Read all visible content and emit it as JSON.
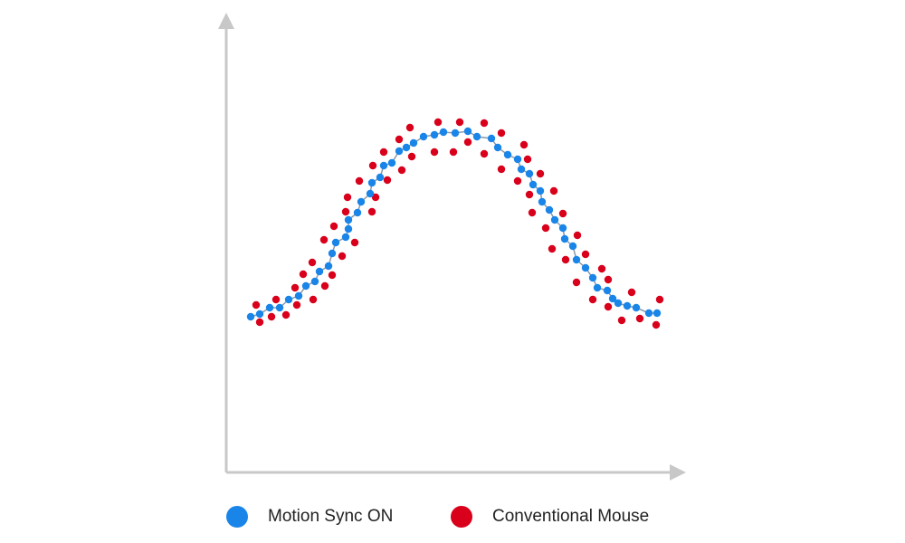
{
  "chart_data": {
    "type": "scatter",
    "title": "",
    "xlabel": "",
    "ylabel": "",
    "xlim": [
      0,
      100
    ],
    "ylim": [
      0,
      100
    ],
    "grid": false,
    "legend_placement": "bottom",
    "axis_color": "#c8c8c8",
    "series": [
      {
        "name": "Motion Sync ON",
        "color": "#1a85e8",
        "connected": true,
        "line_color": "#8a9aa8",
        "points": [
          [
            5.4,
            34.4
          ],
          [
            7.4,
            35
          ],
          [
            9.6,
            36.4
          ],
          [
            11.8,
            36.4
          ],
          [
            13.8,
            38.2
          ],
          [
            16,
            39
          ],
          [
            17.6,
            41.2
          ],
          [
            19.6,
            42.2
          ],
          [
            20.6,
            44.4
          ],
          [
            22.6,
            45.6
          ],
          [
            23.4,
            48.4
          ],
          [
            24.2,
            50.8
          ],
          [
            26.4,
            52
          ],
          [
            27,
            53.8
          ],
          [
            27,
            55.8
          ],
          [
            29,
            57.4
          ],
          [
            29.8,
            59.8
          ],
          [
            31.8,
            61.6
          ],
          [
            32.2,
            64
          ],
          [
            34,
            65.2
          ],
          [
            34.8,
            67.8
          ],
          [
            36.6,
            68.4
          ],
          [
            38.2,
            71
          ],
          [
            39.8,
            71.8
          ],
          [
            41.4,
            72.8
          ],
          [
            43.6,
            74.2
          ],
          [
            46,
            74.6
          ],
          [
            48,
            75.2
          ],
          [
            50.6,
            75
          ],
          [
            53.4,
            75.4
          ],
          [
            55.4,
            74.2
          ],
          [
            58.6,
            73.8
          ],
          [
            60,
            71.8
          ],
          [
            62.2,
            70.2
          ],
          [
            64.4,
            69.2
          ],
          [
            65.2,
            67
          ],
          [
            67,
            66
          ],
          [
            67.8,
            63.6
          ],
          [
            69.4,
            62.2
          ],
          [
            69.8,
            59.8
          ],
          [
            71.4,
            58
          ],
          [
            72.6,
            55.8
          ],
          [
            74.4,
            54
          ],
          [
            74.8,
            51.6
          ],
          [
            76.6,
            50
          ],
          [
            77.4,
            47
          ],
          [
            79.4,
            45.2
          ],
          [
            81,
            43
          ],
          [
            82,
            40.8
          ],
          [
            84.2,
            40.2
          ],
          [
            85.4,
            38.4
          ],
          [
            86.6,
            37.4
          ],
          [
            88.6,
            36.8
          ],
          [
            90.6,
            36.4
          ],
          [
            93.4,
            35.2
          ],
          [
            95.2,
            35.2
          ]
        ]
      },
      {
        "name": "Conventional Mouse",
        "color": "#d9001b",
        "connected": false,
        "points": [
          [
            6.6,
            37
          ],
          [
            7.4,
            33.2
          ],
          [
            10,
            34.4
          ],
          [
            11,
            38.2
          ],
          [
            13.2,
            34.8
          ],
          [
            15.2,
            40.8
          ],
          [
            15.6,
            37
          ],
          [
            17,
            43.8
          ],
          [
            19.2,
            38.2
          ],
          [
            19,
            46.4
          ],
          [
            21.8,
            41.2
          ],
          [
            23.4,
            43.6
          ],
          [
            21.6,
            51.4
          ],
          [
            25.6,
            47.8
          ],
          [
            23.8,
            54.4
          ],
          [
            28.4,
            50.8
          ],
          [
            26.4,
            57.6
          ],
          [
            26.8,
            60.8
          ],
          [
            32.2,
            57.6
          ],
          [
            29.4,
            64.4
          ],
          [
            33,
            60.8
          ],
          [
            32.4,
            67.8
          ],
          [
            35.6,
            64.6
          ],
          [
            34.8,
            70.8
          ],
          [
            38.8,
            66.8
          ],
          [
            38.2,
            73.6
          ],
          [
            41,
            69.8
          ],
          [
            40.6,
            76.2
          ],
          [
            46,
            70.8
          ],
          [
            46.8,
            77.4
          ],
          [
            50.2,
            70.8
          ],
          [
            51.6,
            77.4
          ],
          [
            53.4,
            73
          ],
          [
            57,
            77.2
          ],
          [
            57,
            70.4
          ],
          [
            60.8,
            75
          ],
          [
            60.8,
            67
          ],
          [
            65.8,
            72.4
          ],
          [
            66.6,
            69.2
          ],
          [
            64.4,
            64.4
          ],
          [
            69.4,
            66
          ],
          [
            67,
            61.4
          ],
          [
            72.4,
            62.2
          ],
          [
            67.6,
            57.4
          ],
          [
            74.4,
            57.2
          ],
          [
            70.6,
            54
          ],
          [
            77.6,
            52.4
          ],
          [
            72,
            49.4
          ],
          [
            79.4,
            48.2
          ],
          [
            75,
            47
          ],
          [
            83,
            45
          ],
          [
            77.4,
            42
          ],
          [
            84.4,
            42.6
          ],
          [
            81,
            38.2
          ],
          [
            89.6,
            39.8
          ],
          [
            84.4,
            36.6
          ],
          [
            95.8,
            38.2
          ],
          [
            87.4,
            33.6
          ],
          [
            91.4,
            34
          ],
          [
            95,
            32.6
          ]
        ]
      }
    ]
  }
}
